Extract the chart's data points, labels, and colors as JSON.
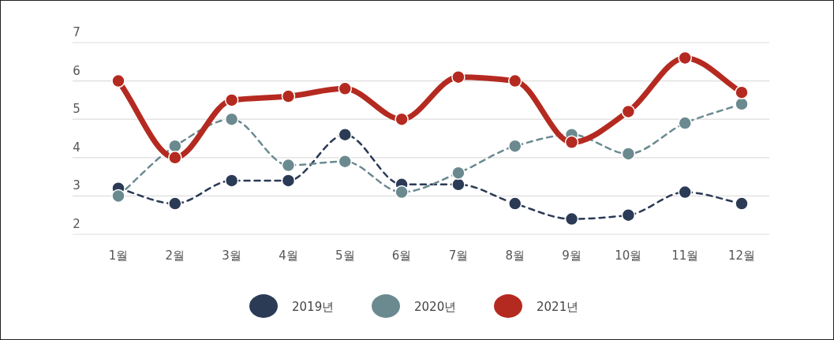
{
  "chart_data": {
    "type": "line",
    "categories": [
      "1월",
      "2월",
      "3월",
      "4월",
      "5월",
      "6월",
      "7월",
      "8월",
      "9월",
      "10월",
      "11월",
      "12월"
    ],
    "series": [
      {
        "name": "2019년",
        "color": "#2b3a55",
        "line_style": "dashed",
        "values": [
          3.2,
          2.8,
          3.4,
          3.4,
          4.6,
          3.3,
          3.3,
          2.8,
          2.4,
          2.5,
          3.1,
          2.8
        ]
      },
      {
        "name": "2020년",
        "color": "#6b8a90",
        "line_style": "dashed",
        "values": [
          3.0,
          4.3,
          5.0,
          3.8,
          3.9,
          3.1,
          3.6,
          4.3,
          4.6,
          4.1,
          4.9,
          5.4
        ]
      },
      {
        "name": "2021년",
        "color": "#b52a20",
        "line_style": "solid",
        "values": [
          6.0,
          4.0,
          5.5,
          5.6,
          5.8,
          5.0,
          6.1,
          6.0,
          4.4,
          5.2,
          6.6,
          5.7
        ]
      }
    ],
    "ylim": [
      2,
      7
    ],
    "yticks": [
      2,
      3,
      4,
      5,
      6,
      7
    ],
    "grid": "y",
    "legend": "bottom",
    "marker": "circle"
  }
}
